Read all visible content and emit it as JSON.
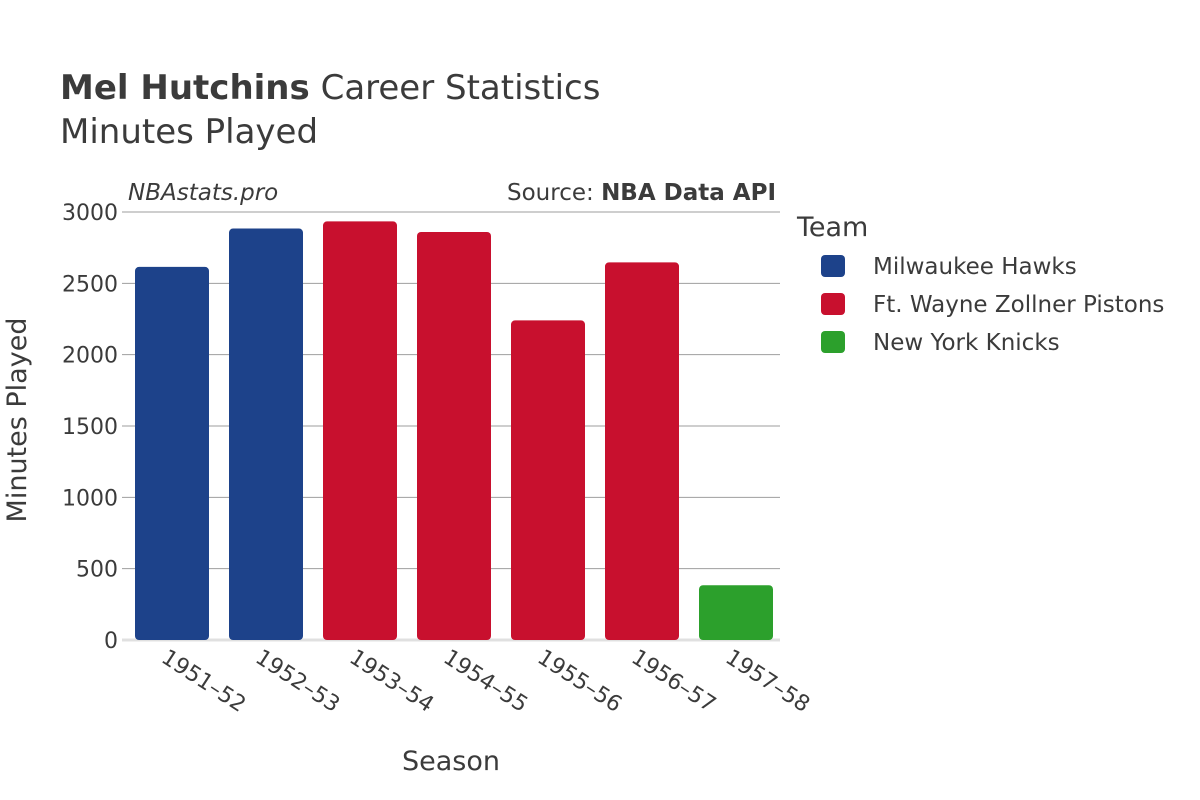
{
  "header": {
    "title_bold": "Mel Hutchins",
    "title_rest": " Career Statistics",
    "subtitle": "Minutes Played"
  },
  "credits": {
    "site": "NBAstats.pro",
    "source_prefix": "Source: ",
    "source_name": "NBA Data API"
  },
  "legend": {
    "title": "Team"
  },
  "chart_data": {
    "type": "bar",
    "title": "Mel Hutchins Career Statistics",
    "subtitle": "Minutes Played",
    "xlabel": "Season",
    "ylabel": "Minutes Played",
    "ylim": [
      0,
      3000
    ],
    "yticks": [
      0,
      500,
      1000,
      1500,
      2000,
      2500,
      3000
    ],
    "grid": true,
    "legend_position": "right",
    "categories": [
      "1951–52",
      "1952–53",
      "1953–54",
      "1954–55",
      "1955–56",
      "1956–57",
      "1957–58"
    ],
    "series": [
      {
        "name": "Milwaukee Hawks",
        "color": "#1d428a",
        "values": [
          2615,
          2884,
          null,
          null,
          null,
          null,
          null
        ]
      },
      {
        "name": "Ft. Wayne Zollner Pistons",
        "color": "#c8102e",
        "values": [
          null,
          null,
          2934,
          2860,
          2240,
          2647,
          null
        ]
      },
      {
        "name": "New York Knicks",
        "color": "#2ca02c",
        "values": [
          null,
          null,
          null,
          null,
          null,
          null,
          384
        ]
      }
    ]
  }
}
